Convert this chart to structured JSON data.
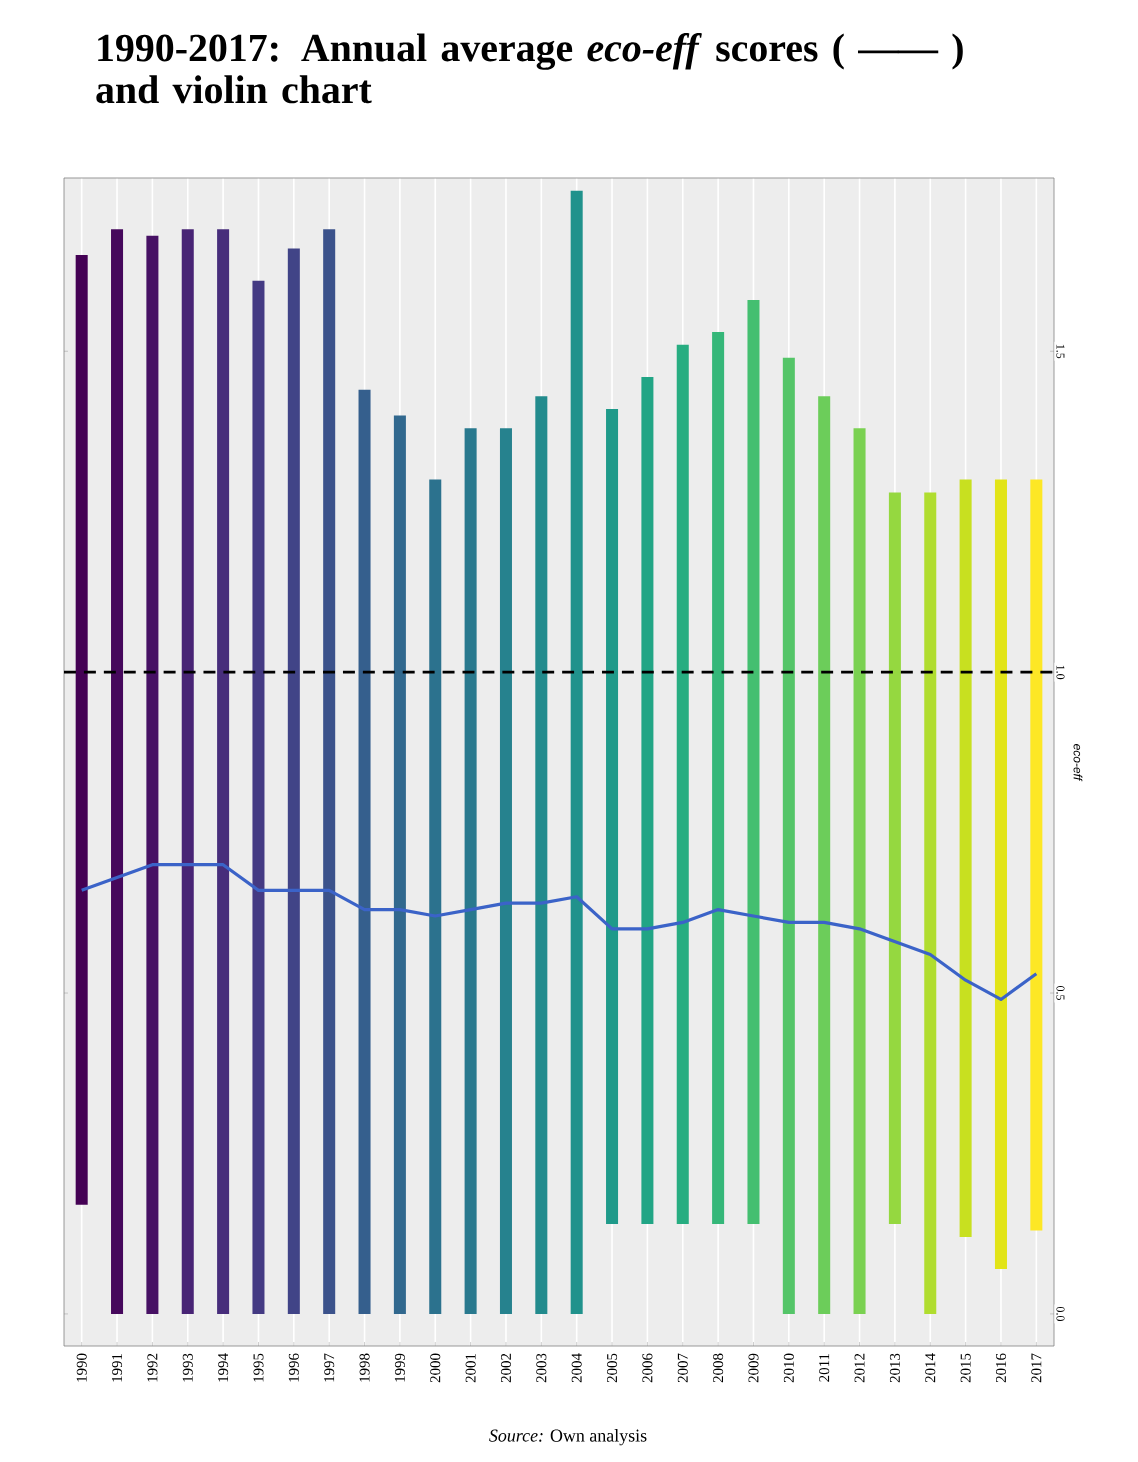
{
  "chart_data": {
    "type": "bar",
    "title": "1990-2017: Annual average *eco-eff* scores ( —— ) and violin chart",
    "ylabel": "eco-eff",
    "annotations": [
      "*Source:* Own analysis"
    ],
    "categories": [
      "1990",
      "1991",
      "1992",
      "1993",
      "1994",
      "1995",
      "1996",
      "1997",
      "1998",
      "1999",
      "2000",
      "2001",
      "2002",
      "2003",
      "2004",
      "2005",
      "2006",
      "2007",
      "2008",
      "2009",
      "2010",
      "2011",
      "2012",
      "2013",
      "2014",
      "2015",
      "2016",
      "2017"
    ],
    "series": [
      {
        "base": [
          0.17,
          0,
          0,
          0,
          0,
          0,
          0,
          0,
          0,
          0,
          0,
          0,
          0,
          0,
          0,
          0.14,
          0.14,
          0.14,
          0.14,
          0.14,
          0,
          0,
          0,
          0.14,
          0,
          0.12,
          0.07,
          0.13
        ],
        "values": [
          1.48,
          1.69,
          1.68,
          1.69,
          1.69,
          1.61,
          1.66,
          1.69,
          1.44,
          1.4,
          1.3,
          1.38,
          1.38,
          1.43,
          1.75,
          1.27,
          1.32,
          1.37,
          1.39,
          1.44,
          1.49,
          1.43,
          1.38,
          1.14,
          1.28,
          1.18,
          1.23,
          1.17
        ],
        "colors": [
          "#440154",
          "#46085c",
          "#471164",
          "#482475",
          "#472d7b",
          "#443a83",
          "#414487",
          "#3b528b",
          "#355f8d",
          "#31688e",
          "#2c728e",
          "#29798e",
          "#26828e",
          "#228b8d",
          "#20928c",
          "#1f9a8a",
          "#21a585",
          "#27ad81",
          "#35b779",
          "#44bf70",
          "#54c568",
          "#6ccd5a",
          "#7ad151",
          "#95d840",
          "#b0dd2f",
          "#c8e020",
          "#e2e418",
          "#fde725"
        ]
      },
      {
        "type": "line",
        "color": "#3b63c8",
        "values": [
          0.66,
          0.68,
          0.7,
          0.7,
          0.7,
          0.66,
          0.66,
          0.66,
          0.63,
          0.63,
          0.62,
          0.63,
          0.64,
          0.64,
          0.65,
          0.6,
          0.6,
          0.61,
          0.63,
          0.62,
          0.61,
          0.61,
          0.6,
          0.58,
          0.56,
          0.52,
          0.49,
          0.53
        ]
      }
    ],
    "ylim": [
      -0.05,
      1.77
    ],
    "yticks": [
      {
        "value": 0,
        "label": "0.0"
      },
      {
        "value": 0.5,
        "label": "0.5"
      },
      {
        "value": 1,
        "label": "1.0"
      },
      {
        "value": 1.5,
        "label": "1.5"
      }
    ],
    "ref_lines": [
      {
        "axis": "y",
        "value": 1,
        "color": "#000000",
        "line_style": "dashed"
      }
    ],
    "grid": "x"
  }
}
